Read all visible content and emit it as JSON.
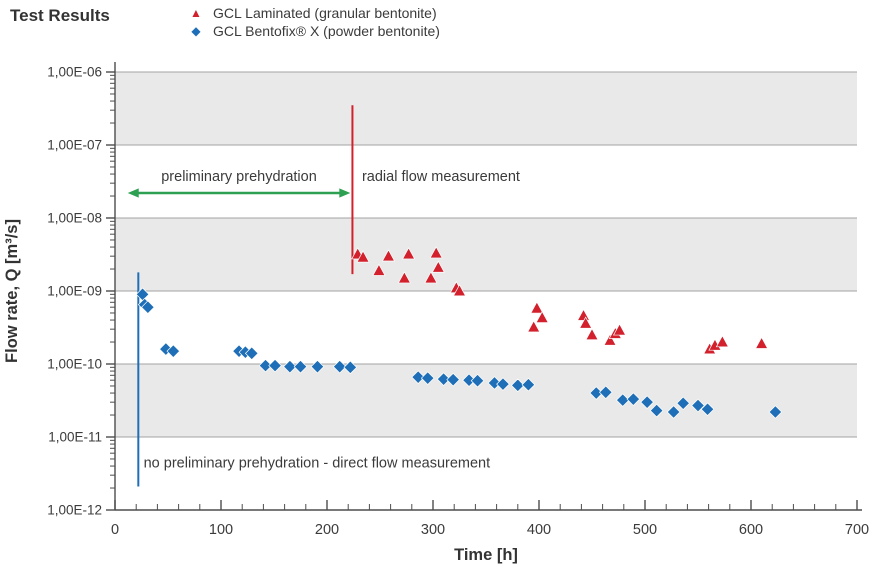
{
  "title": "Test Results",
  "legend": {
    "items": [
      {
        "label": "GCL Laminated (granular bentonite)",
        "glyph": "▲",
        "marker": "triangle-up",
        "color": "#d2202c"
      },
      {
        "label": "GCL Bentofix® X (powder bentonite)",
        "glyph": "◆",
        "marker": "diamond",
        "color": "#1e6fb7"
      }
    ]
  },
  "chart_data": {
    "type": "scatter",
    "title": "Test Results",
    "xlabel": "Time [h]",
    "ylabel": "Flow rate, Q [m³/s]",
    "xlim": [
      0,
      700
    ],
    "x_ticks": [
      0,
      100,
      200,
      300,
      400,
      500,
      600,
      700
    ],
    "x_minor_step": 20,
    "y_scale": "log",
    "top_exponent": -6,
    "bottom_exponent": -12,
    "y_tick_exponents": [
      -6,
      -7,
      -8,
      -9,
      -10,
      -11,
      -12
    ],
    "y_tick_labels": [
      "1,00E-06",
      "1,00E-07",
      "1,00E-08",
      "1,00E-09",
      "1,00E-10",
      "1,00E-11",
      "1,00E-12"
    ],
    "grid": true,
    "grid_color": "#a3a3a3",
    "band_color": "#e9e9e9",
    "axis_color": "#4d4d4d",
    "text_color": "#3b3b3b",
    "shaded_bands": [
      [
        -6,
        -7
      ],
      [
        -8,
        -9
      ],
      [
        -10,
        -11
      ]
    ],
    "legend_position": "top",
    "series": [
      {
        "name": "GCL Laminated (granular bentonite)",
        "marker": "triangle-up",
        "color": "#d2202c",
        "points": [
          [
            229,
            3.2e-09
          ],
          [
            234,
            2.9e-09
          ],
          [
            249,
            1.9e-09
          ],
          [
            258,
            3e-09
          ],
          [
            273,
            1.5e-09
          ],
          [
            277,
            3.2e-09
          ],
          [
            298,
            1.5e-09
          ],
          [
            303,
            3.3e-09
          ],
          [
            305,
            2.1e-09
          ],
          [
            322,
            1.1e-09
          ],
          [
            325,
            1e-09
          ],
          [
            395,
            3.2e-10
          ],
          [
            398,
            5.8e-10
          ],
          [
            403,
            4.3e-10
          ],
          [
            442,
            4.6e-10
          ],
          [
            444,
            3.6e-10
          ],
          [
            450,
            2.5e-10
          ],
          [
            467,
            2.1e-10
          ],
          [
            472,
            2.6e-10
          ],
          [
            476,
            2.9e-10
          ],
          [
            561,
            1.6e-10
          ],
          [
            566,
            1.8e-10
          ],
          [
            573,
            2e-10
          ],
          [
            610,
            1.9e-10
          ]
        ]
      },
      {
        "name": "GCL Bentofix® X (powder bentonite)",
        "marker": "diamond",
        "color": "#1e6fb7",
        "points": [
          [
            26,
            9e-10
          ],
          [
            28,
            6.5e-10
          ],
          [
            31,
            6e-10
          ],
          [
            48,
            1.6e-10
          ],
          [
            55,
            1.5e-10
          ],
          [
            117,
            1.5e-10
          ],
          [
            123,
            1.45e-10
          ],
          [
            129,
            1.4e-10
          ],
          [
            142,
            9.5e-11
          ],
          [
            151,
            9.5e-11
          ],
          [
            165,
            9.2e-11
          ],
          [
            175,
            9.2e-11
          ],
          [
            191,
            9.2e-11
          ],
          [
            212,
            9.2e-11
          ],
          [
            222,
            9e-11
          ],
          [
            286,
            6.6e-11
          ],
          [
            295,
            6.4e-11
          ],
          [
            310,
            6.2e-11
          ],
          [
            319,
            6.1e-11
          ],
          [
            334,
            6e-11
          ],
          [
            342,
            5.9e-11
          ],
          [
            358,
            5.5e-11
          ],
          [
            366,
            5.3e-11
          ],
          [
            380,
            5.1e-11
          ],
          [
            390,
            5.2e-11
          ],
          [
            454,
            4e-11
          ],
          [
            463,
            4.1e-11
          ],
          [
            479,
            3.2e-11
          ],
          [
            489,
            3.3e-11
          ],
          [
            502,
            3e-11
          ],
          [
            511,
            2.3e-11
          ],
          [
            527,
            2.2e-11
          ],
          [
            536,
            2.9e-11
          ],
          [
            550,
            2.7e-11
          ],
          [
            559,
            2.4e-11
          ],
          [
            623,
            2.2e-11
          ]
        ]
      }
    ],
    "annotations": {
      "prehydration_arrow": {
        "label": "preliminary prehydration",
        "x_start": 12,
        "x_end": 222,
        "y": 2.2e-08,
        "label_y": 3.2e-08,
        "color": "#2da052"
      },
      "radial_label": {
        "label": "radial flow measurement",
        "x": 233,
        "y": 3.2e-08
      },
      "red_line": {
        "x": 224,
        "y_start": 1.7e-09,
        "y_end": 3.5e-07,
        "color": "#d2202c"
      },
      "blue_line": {
        "x": 22,
        "y_start": 2.1e-12,
        "y_end": 1.8e-09,
        "color": "#1e6fb7"
      },
      "no_prehydration_label": {
        "label": "no preliminary prehydration - direct flow measurement",
        "x": 27,
        "y": 3.8e-12
      }
    }
  }
}
